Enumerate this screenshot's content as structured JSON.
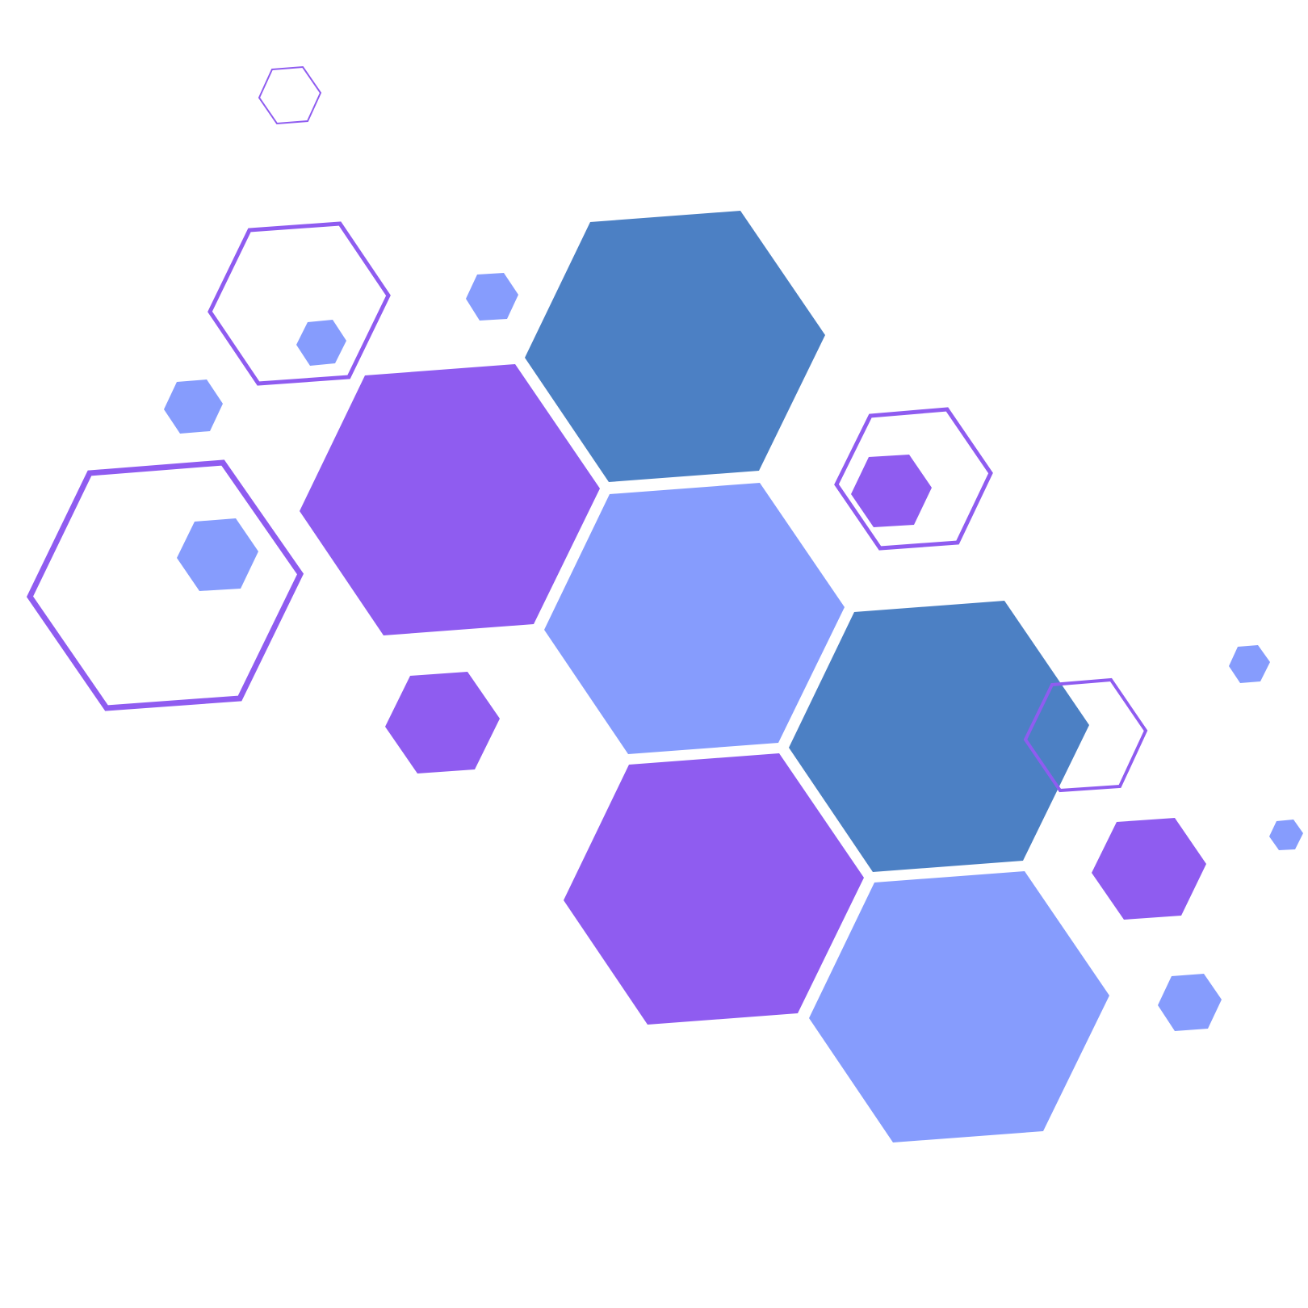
{
  "colors": {
    "background": "#ffffff",
    "purple": "#8f5cf0",
    "steel_blue": "#4c80c4",
    "periwinkle": "#869cfd"
  }
}
